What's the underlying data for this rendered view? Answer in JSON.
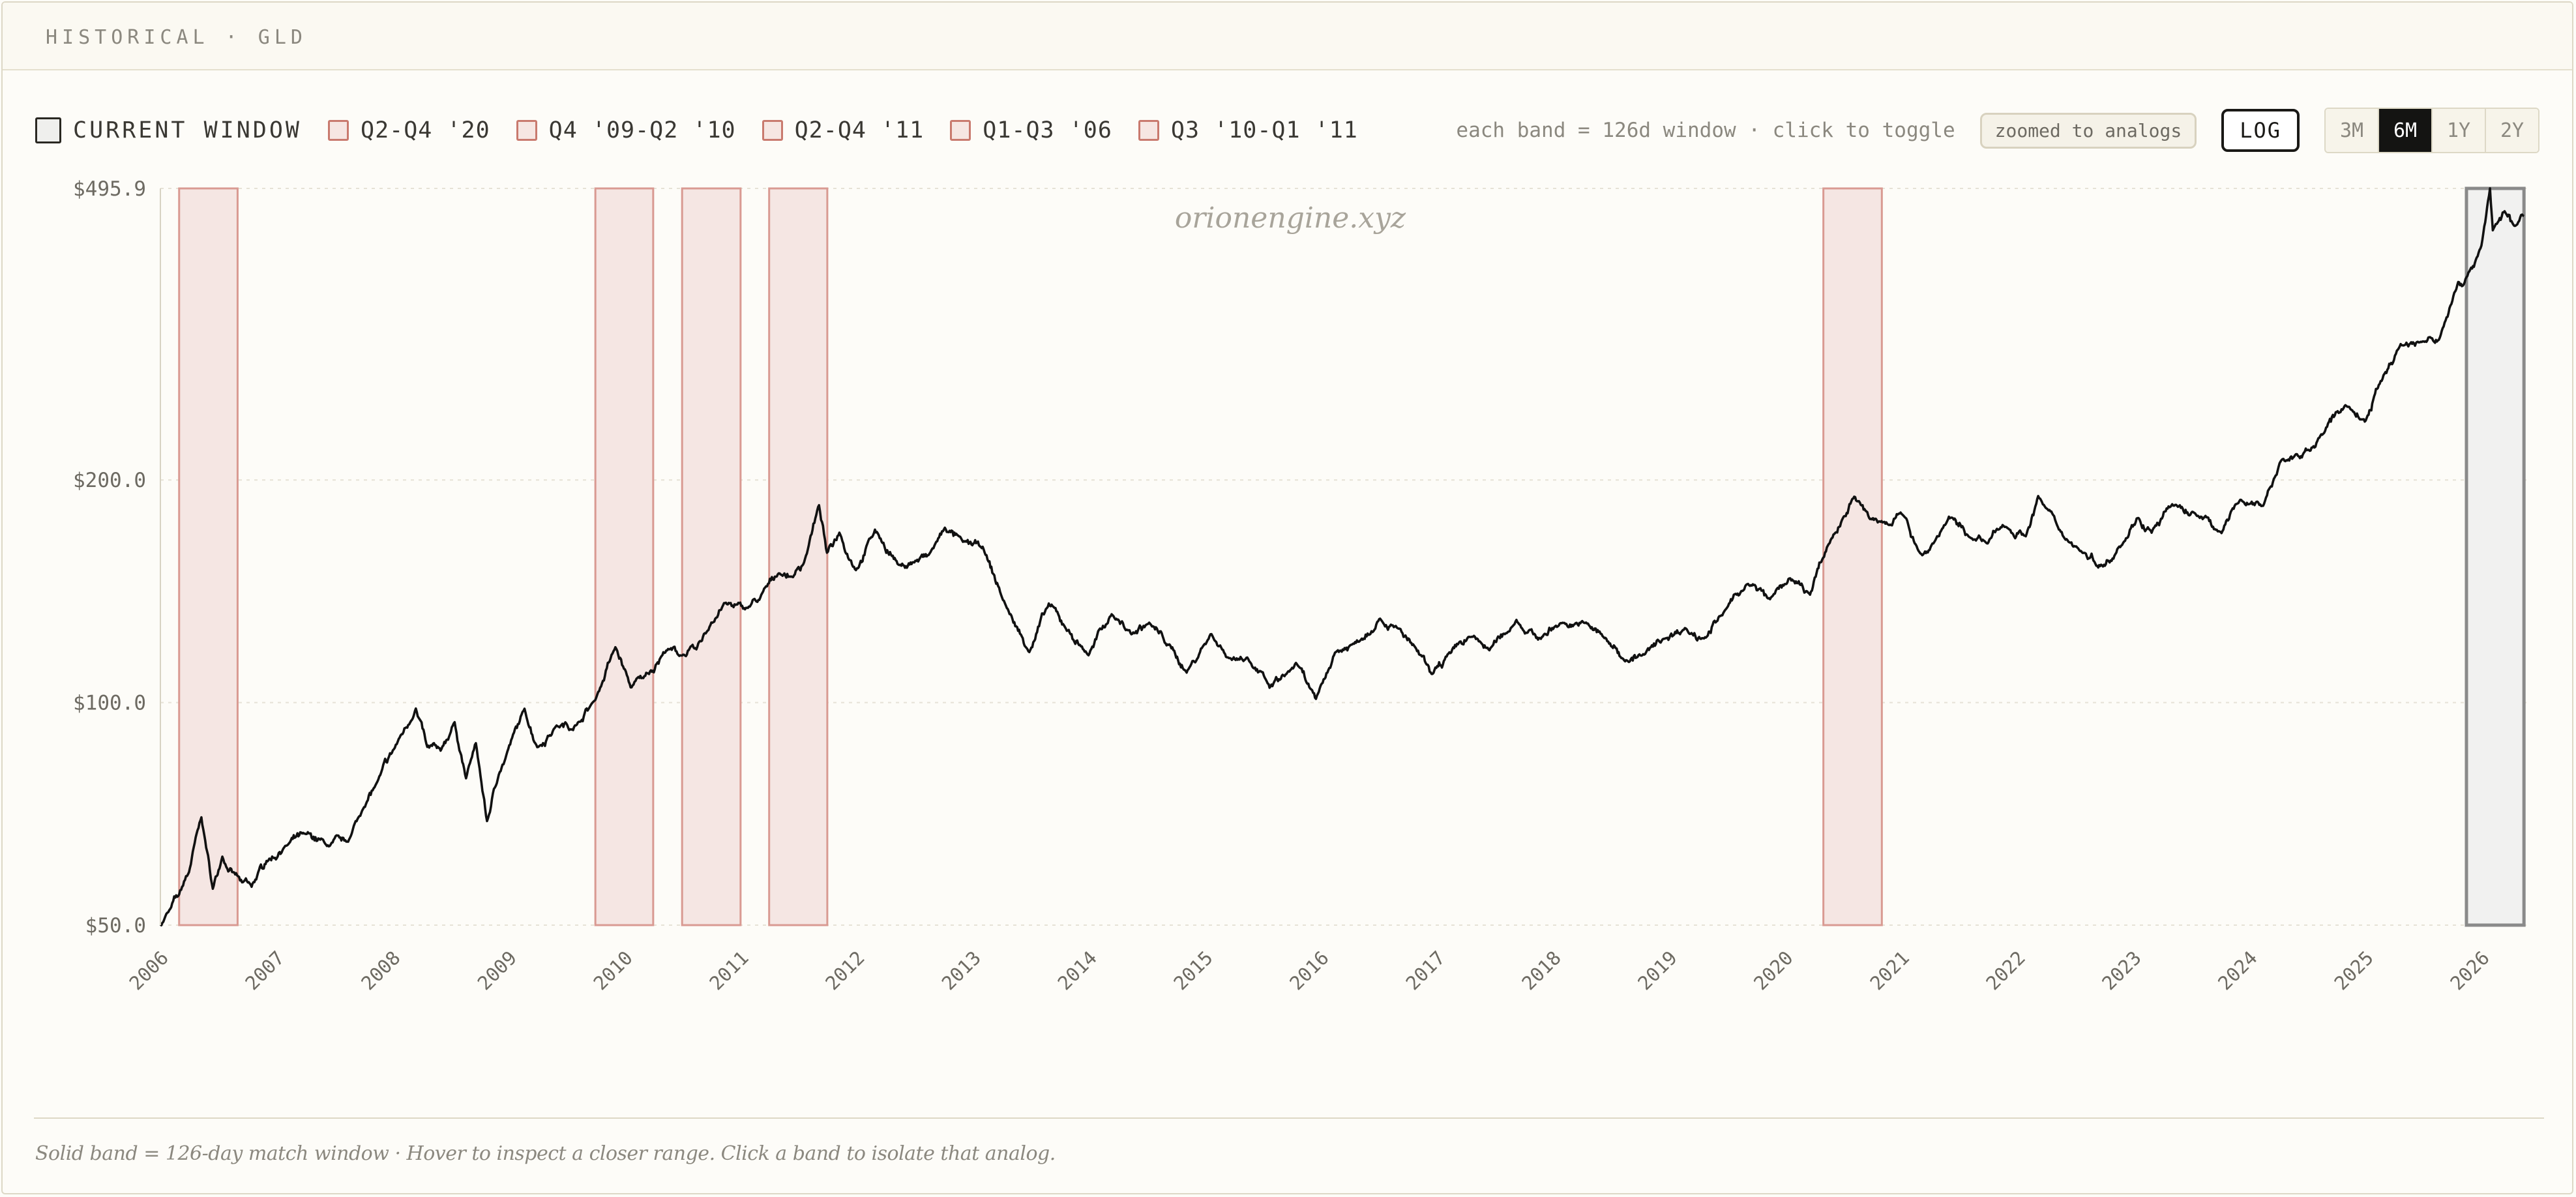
{
  "header": {
    "title": "HISTORICAL · GLD"
  },
  "legend": {
    "current_label": "CURRENT WINDOW",
    "bands": [
      {
        "label": "Q2-Q4 '20"
      },
      {
        "label": "Q4 '09-Q2 '10"
      },
      {
        "label": "Q2-Q4 '11"
      },
      {
        "label": "Q1-Q3 '06"
      },
      {
        "label": "Q3 '10-Q1 '11"
      }
    ]
  },
  "controls": {
    "hint": "each band = 126d window · click to toggle",
    "zoom_label": "zoomed to analogs",
    "log_label": "LOG",
    "ranges": [
      {
        "label": "3M",
        "active": false
      },
      {
        "label": "6M",
        "active": true
      },
      {
        "label": "1Y",
        "active": false
      },
      {
        "label": "2Y",
        "active": false
      }
    ]
  },
  "footnote": "Solid band = 126-day match window · Hover to inspect a closer range. Click a band to isolate that analog.",
  "colors": {
    "line": "#111111",
    "band_fill": "#f5e6e3",
    "band_stroke": "#d99a92",
    "current_fill": "#f1f1f0",
    "current_stroke": "#8a8a8a",
    "grid": "#e6e2d6",
    "axis_text": "#6d6a62"
  },
  "chart_data": {
    "type": "line",
    "title": "",
    "watermark": "orionengine.xyz",
    "xlabel": "",
    "ylabel": "",
    "y_scale": "log",
    "ylim": [
      50.0,
      495.9
    ],
    "y_ticks": [
      {
        "value": 495.9,
        "label": "$495.9"
      },
      {
        "value": 200.0,
        "label": "$200.0"
      },
      {
        "value": 100.0,
        "label": "$100.0"
      },
      {
        "value": 50.0,
        "label": "$50.0"
      }
    ],
    "xlim": [
      "2006-01-01",
      "2026-05-31"
    ],
    "x_ticks": [
      "2006",
      "2007",
      "2008",
      "2009",
      "2010",
      "2011",
      "2012",
      "2013",
      "2014",
      "2015",
      "2016",
      "2017",
      "2018",
      "2019",
      "2020",
      "2021",
      "2022",
      "2023",
      "2024",
      "2025",
      "2026"
    ],
    "bands": [
      {
        "label": "Q1-Q3 '06",
        "start": "2006-03-01",
        "end": "2006-09-01"
      },
      {
        "label": "Q4 '09-Q2 '10",
        "start": "2009-10-01",
        "end": "2010-04-01"
      },
      {
        "label": "Q3 '10-Q1 '11",
        "start": "2010-07-01",
        "end": "2011-01-01"
      },
      {
        "label": "Q2-Q4 '11",
        "start": "2011-04-01",
        "end": "2011-10-01"
      },
      {
        "label": "Q2-Q4 '20",
        "start": "2020-05-01",
        "end": "2020-11-01"
      }
    ],
    "current_window": {
      "label": "CURRENT WINDOW",
      "start": "2025-11-15",
      "end": "2026-05-15"
    },
    "series": [
      {
        "x": [
          "2006-01-01",
          "2006-02-01",
          "2006-03-01",
          "2006-04-01",
          "2006-05-10",
          "2006-06-15",
          "2006-07-15",
          "2006-08-15",
          "2006-09-15",
          "2006-10-15",
          "2006-12-01",
          "2007-02-01",
          "2007-04-01",
          "2007-06-15",
          "2007-08-15",
          "2007-10-01",
          "2007-11-15",
          "2008-01-15",
          "2008-03-15",
          "2008-04-20",
          "2008-06-01",
          "2008-07-15",
          "2008-08-20",
          "2008-09-20",
          "2008-10-25",
          "2008-12-01",
          "2009-02-20",
          "2009-04-01",
          "2009-06-01",
          "2009-08-01",
          "2009-10-01",
          "2009-12-03",
          "2010-01-20",
          "2010-03-01",
          "2010-05-15",
          "2010-07-01",
          "2010-08-15",
          "2010-10-01",
          "2010-11-10",
          "2011-01-15",
          "2011-03-01",
          "2011-05-01",
          "2011-06-15",
          "2011-07-20",
          "2011-09-05",
          "2011-09-30",
          "2011-11-08",
          "2011-12-30",
          "2012-02-28",
          "2012-05-15",
          "2012-07-01",
          "2012-08-15",
          "2012-10-05",
          "2012-12-01",
          "2013-02-01",
          "2013-04-15",
          "2013-06-28",
          "2013-08-28",
          "2013-10-15",
          "2013-12-31",
          "2014-03-14",
          "2014-05-15",
          "2014-07-10",
          "2014-09-15",
          "2014-11-05",
          "2015-01-22",
          "2015-03-15",
          "2015-05-15",
          "2015-07-24",
          "2015-09-15",
          "2015-10-15",
          "2015-12-17",
          "2016-02-15",
          "2016-04-15",
          "2016-07-06",
          "2016-08-15",
          "2016-10-15",
          "2016-12-15",
          "2017-02-15",
          "2017-04-15",
          "2017-06-15",
          "2017-09-08",
          "2017-11-15",
          "2018-01-25",
          "2018-04-15",
          "2018-06-15",
          "2018-08-16",
          "2018-10-15",
          "2018-12-15",
          "2019-02-20",
          "2019-04-15",
          "2019-06-15",
          "2019-09-04",
          "2019-11-15",
          "2020-01-15",
          "2020-03-20",
          "2020-05-15",
          "2020-08-06",
          "2020-09-25",
          "2020-11-15",
          "2021-01-05",
          "2021-03-08",
          "2021-04-15",
          "2021-05-31",
          "2021-08-09",
          "2021-09-30",
          "2021-11-16",
          "2022-01-28",
          "2022-03-08",
          "2022-05-15",
          "2022-07-15",
          "2022-09-28",
          "2022-11-15",
          "2023-01-15",
          "2023-02-28",
          "2023-05-04",
          "2023-07-15",
          "2023-10-06",
          "2023-12-04",
          "2024-02-14",
          "2024-04-12",
          "2024-06-15",
          "2024-08-15",
          "2024-10-30",
          "2025-01-02",
          "2025-02-15",
          "2025-04-22",
          "2025-06-15",
          "2025-08-20",
          "2025-10-20",
          "2025-11-15",
          "2026-01-01",
          "2026-01-28",
          "2026-02-06",
          "2026-03-15",
          "2026-04-15",
          "2026-05-15"
        ],
        "y": [
          50.0,
          52.5,
          55.0,
          59.0,
          70.0,
          56.0,
          62.0,
          59.0,
          57.0,
          56.5,
          61.0,
          64.0,
          66.5,
          64.0,
          65.0,
          72.0,
          78.0,
          88.0,
          98.0,
          87.0,
          86.0,
          94.0,
          79.0,
          88.0,
          69.0,
          80.0,
          98.0,
          87.0,
          93.0,
          93.0,
          101.0,
          119.0,
          105.0,
          108.0,
          118.0,
          116.0,
          118.0,
          128.0,
          136.0,
          134.0,
          138.0,
          150.0,
          148.0,
          155.0,
          185.0,
          159.0,
          170.0,
          151.0,
          171.0,
          153.0,
          155.0,
          158.0,
          172.0,
          165.0,
          162.0,
          135.0,
          117.0,
          136.0,
          127.0,
          116.0,
          132.0,
          124.0,
          128.0,
          119.0,
          110.0,
          124.0,
          115.0,
          115.0,
          105.0,
          109.0,
          113.0,
          101.0,
          117.0,
          120.0,
          130.0,
          127.0,
          120.0,
          109.0,
          117.0,
          123.0,
          118.0,
          129.0,
          122.0,
          128.0,
          128.0,
          122.0,
          114.0,
          116.0,
          122.0,
          126.0,
          122.0,
          131.0,
          145.0,
          138.0,
          147.0,
          140.0,
          163.0,
          190.0,
          177.0,
          175.0,
          180.0,
          158.0,
          165.0,
          178.0,
          167.0,
          164.0,
          174.0,
          168.0,
          190.0,
          171.0,
          161.0,
          153.0,
          162.0,
          178.0,
          170.0,
          185.0,
          180.0,
          170.0,
          188.0,
          185.0,
          213.0,
          215.0,
          230.0,
          253.0,
          240.0,
          270.0,
          305.0,
          307.0,
          309.0,
          370.0,
          375.0,
          415.0,
          495.9,
          435.0,
          462.0,
          440.0,
          455.0
        ]
      }
    ]
  }
}
